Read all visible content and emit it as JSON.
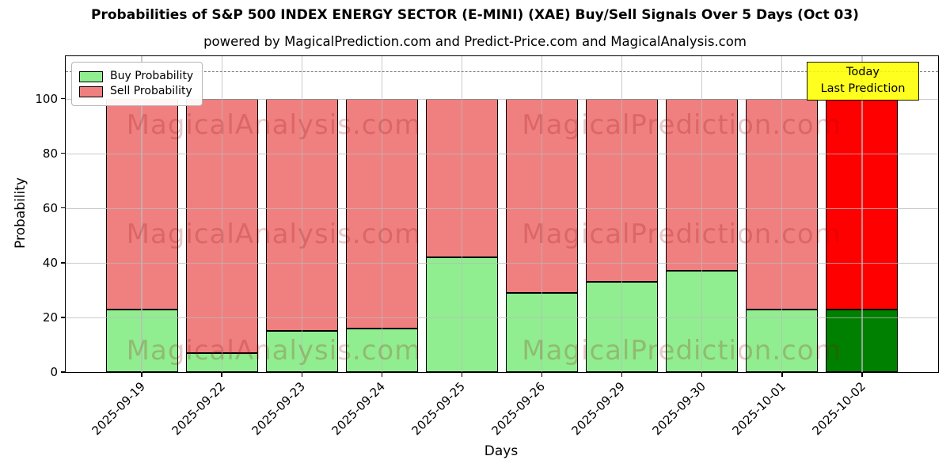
{
  "title": "Probabilities of S&P 500 INDEX ENERGY SECTOR (E-MINI) (XAE) Buy/Sell Signals Over 5 Days (Oct 03)",
  "subtitle": "powered by MagicalPrediction.com and Predict-Price.com and MagicalAnalysis.com",
  "axis": {
    "x_label": "Days",
    "y_label": "Probability"
  },
  "legend": {
    "items": [
      {
        "label": "Buy Probability",
        "color": "#90ee90"
      },
      {
        "label": "Sell Probability",
        "color": "#f08080"
      }
    ]
  },
  "annotation": {
    "line1": "Today",
    "line2": "Last Prediction",
    "bg": "rgba(255,255,0,0.88)"
  },
  "watermarks": {
    "left": "MagicalAnalysis.com",
    "right": "MagicalPrediction.com",
    "color": "rgba(150,10,10,0.22)"
  },
  "chart_data": {
    "type": "bar",
    "stacked": true,
    "title": "Probabilities of S&P 500 INDEX ENERGY SECTOR (E-MINI) (XAE) Buy/Sell Signals Over 5 Days (Oct 03)",
    "xlabel": "Days",
    "ylabel": "Probability",
    "categories": [
      "2025-09-19",
      "2025-09-22",
      "2025-09-23",
      "2025-09-24",
      "2025-09-25",
      "2025-09-26",
      "2025-09-29",
      "2025-09-30",
      "2025-10-01",
      "2025-10-02"
    ],
    "series": [
      {
        "name": "Buy Probability",
        "color": "#90ee90",
        "values": [
          23,
          7,
          15,
          16,
          42,
          29,
          33,
          37,
          23,
          23
        ]
      },
      {
        "name": "Sell Probability",
        "color": "#f08080",
        "values": [
          77,
          93,
          85,
          84,
          58,
          71,
          67,
          63,
          77,
          77
        ]
      }
    ],
    "today_index": 9,
    "today_colors": {
      "buy": "#008000",
      "sell": "#ff0000"
    },
    "bar_edge_color": "#000000",
    "yticks": [
      0,
      20,
      40,
      60,
      80,
      100
    ],
    "ylim": [
      0,
      115.5
    ],
    "xlim": [
      -0.95,
      9.95
    ],
    "bar_width": 0.9,
    "dashed_line_y": 110,
    "grid": true,
    "legend_position": "upper left"
  }
}
